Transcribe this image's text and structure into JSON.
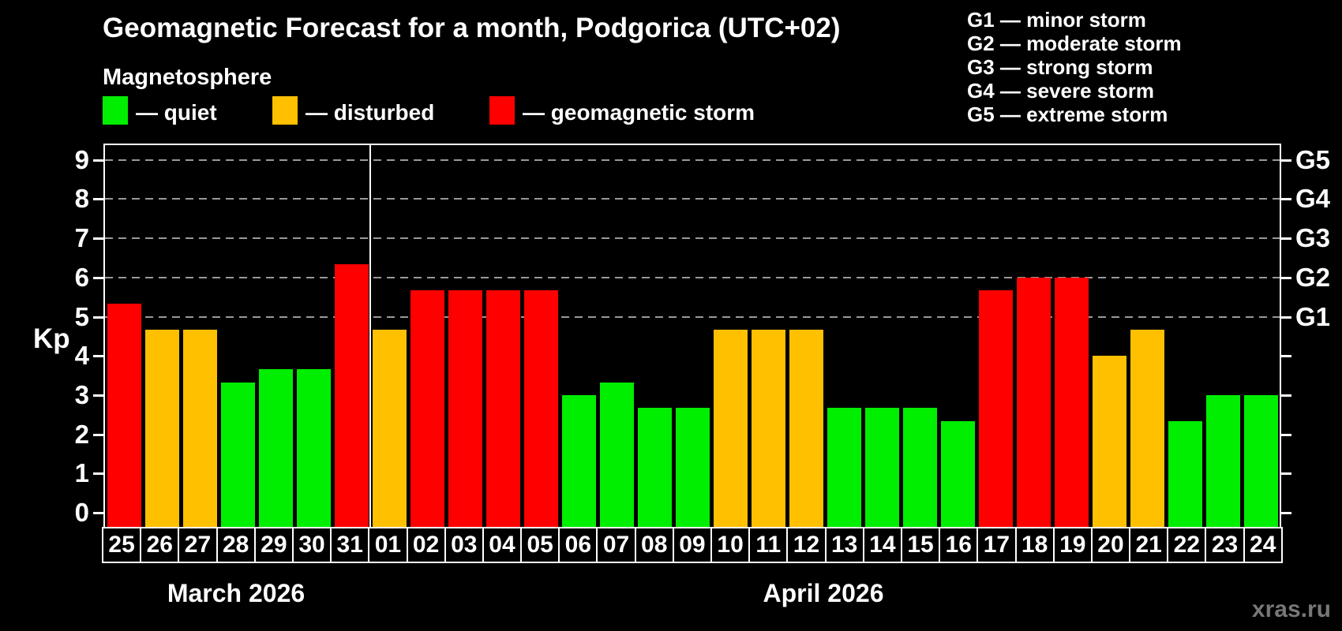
{
  "header": {
    "title": "Geomagnetic Forecast for a month, Podgorica (UTC+02)",
    "subtitle": "Magnetosphere"
  },
  "legend": {
    "items": [
      {
        "key": "quiet",
        "label": "— quiet",
        "color": "#00ee00"
      },
      {
        "key": "disturbed",
        "label": "— disturbed",
        "color": "#ffc000"
      },
      {
        "key": "storm",
        "label": "— geomagnetic storm",
        "color": "#ff0000"
      }
    ]
  },
  "g_scale_legend": [
    "G1 — minor storm",
    "G2 — moderate storm",
    "G3 — strong storm",
    "G4 — severe storm",
    "G5 — extreme storm"
  ],
  "watermark": "xras.ru",
  "chart_data": {
    "type": "bar",
    "title": "Geomagnetic Forecast for a month, Podgorica (UTC+02)",
    "ylabel": "Kp",
    "ylim": [
      -0.36,
      9.35
    ],
    "grid": "dashed horizontal at Kp 5-9 only",
    "yticks": [
      0,
      1,
      2,
      3,
      4,
      5,
      6,
      7,
      8,
      9
    ],
    "right_axis_labels": [
      "G1",
      "G2",
      "G3",
      "G4",
      "G5"
    ],
    "right_axis_kp_levels": [
      5,
      6,
      7,
      8,
      9
    ],
    "colors": {
      "quiet": "#00ee00",
      "disturbed": "#ffc000",
      "storm": "#ff0000"
    },
    "months": [
      {
        "label": "March 2026",
        "days": 7
      },
      {
        "label": "April 2026",
        "days": 24
      }
    ],
    "categories": [
      "25",
      "26",
      "27",
      "28",
      "29",
      "30",
      "31",
      "01",
      "02",
      "03",
      "04",
      "05",
      "06",
      "07",
      "08",
      "09",
      "10",
      "11",
      "12",
      "13",
      "14",
      "15",
      "16",
      "17",
      "18",
      "19",
      "20",
      "21",
      "22",
      "23",
      "24"
    ],
    "values": [
      5.33,
      4.67,
      4.67,
      3.33,
      3.67,
      3.67,
      6.33,
      4.67,
      5.67,
      5.67,
      5.67,
      5.67,
      3.0,
      3.33,
      2.67,
      2.67,
      4.67,
      4.67,
      4.67,
      2.67,
      2.67,
      2.67,
      2.33,
      5.67,
      6.0,
      6.0,
      4.0,
      4.67,
      2.33,
      3.0,
      3.0
    ],
    "status": [
      "storm",
      "disturbed",
      "disturbed",
      "quiet",
      "quiet",
      "quiet",
      "storm",
      "disturbed",
      "storm",
      "storm",
      "storm",
      "storm",
      "quiet",
      "quiet",
      "quiet",
      "quiet",
      "disturbed",
      "disturbed",
      "disturbed",
      "quiet",
      "quiet",
      "quiet",
      "quiet",
      "storm",
      "storm",
      "storm",
      "disturbed",
      "disturbed",
      "quiet",
      "quiet",
      "quiet"
    ]
  }
}
